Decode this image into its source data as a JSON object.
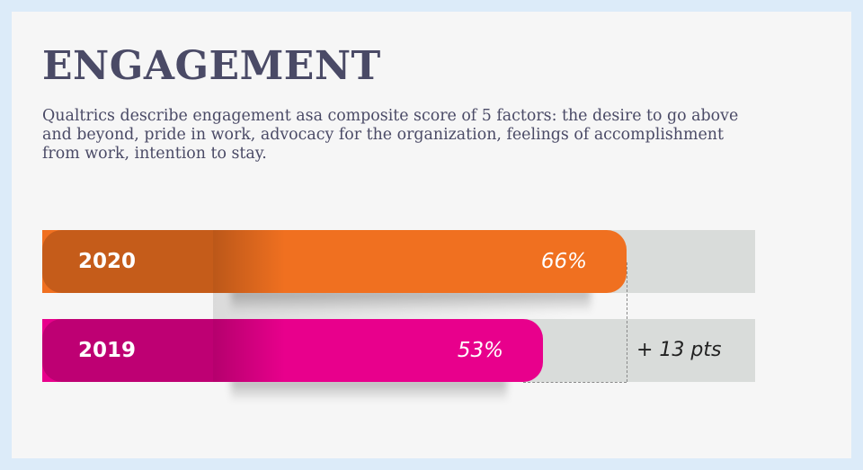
{
  "header": {
    "title": "ENGAGEMENT",
    "description": "Qualtrics describe engagement asa composite score of 5 factors: the desire to go above and beyond, pride in work, advocacy for the organization, feelings of accomplishment from work, intention to stay."
  },
  "chart_data": {
    "type": "bar",
    "orientation": "horizontal",
    "categories": [
      "2020",
      "2019"
    ],
    "series": [
      {
        "values": [
          66,
          53
        ]
      }
    ],
    "value_labels": [
      "66%",
      "53%"
    ],
    "colors": [
      "#f07020",
      "#e8008c"
    ],
    "annotation": "+ 13 pts",
    "xlim": [
      0,
      100
    ],
    "title": "",
    "xlabel": "",
    "ylabel": ""
  }
}
